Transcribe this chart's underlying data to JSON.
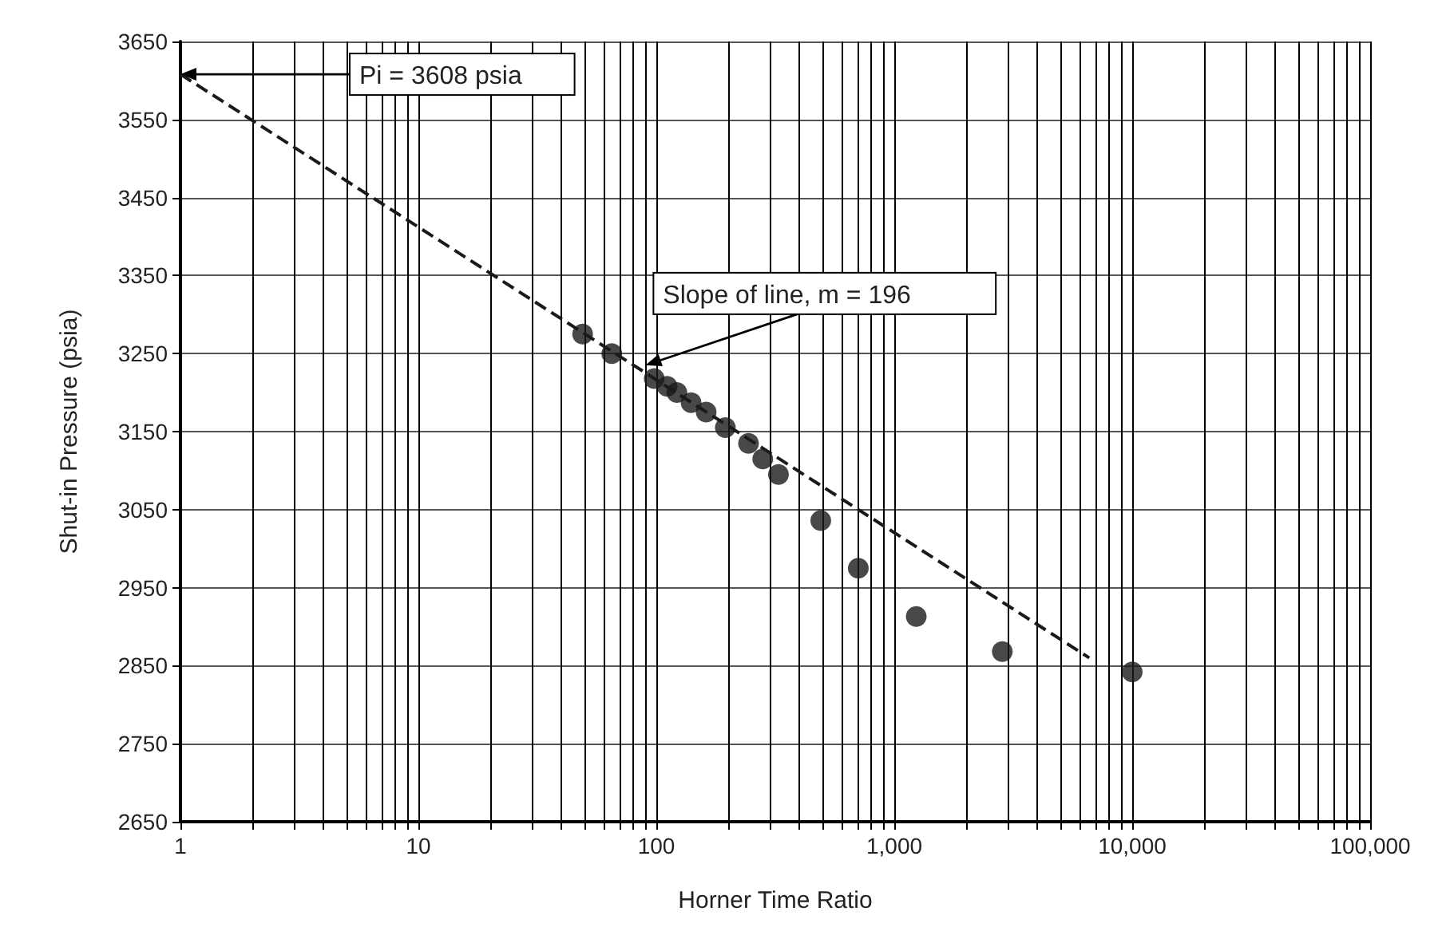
{
  "chart_data": {
    "type": "scatter",
    "xlabel": "Horner Time Ratio",
    "ylabel": "Shut-in Pressure (psia)",
    "log": "x",
    "grid": true,
    "xlim": [
      1,
      100000
    ],
    "ylim": [
      2650,
      3650
    ],
    "xticks": [
      {
        "value": 1,
        "label": "1"
      },
      {
        "value": 2,
        "label": null
      },
      {
        "value": 3,
        "label": null
      },
      {
        "value": 4,
        "label": null
      },
      {
        "value": 5,
        "label": null
      },
      {
        "value": 6,
        "label": null
      },
      {
        "value": 7,
        "label": null
      },
      {
        "value": 8,
        "label": null
      },
      {
        "value": 9,
        "label": null
      },
      {
        "value": 10,
        "label": "10"
      },
      {
        "value": 20,
        "label": null
      },
      {
        "value": 30,
        "label": null
      },
      {
        "value": 40,
        "label": null
      },
      {
        "value": 50,
        "label": null
      },
      {
        "value": 60,
        "label": null
      },
      {
        "value": 70,
        "label": null
      },
      {
        "value": 80,
        "label": null
      },
      {
        "value": 90,
        "label": null
      },
      {
        "value": 100,
        "label": "100"
      },
      {
        "value": 200,
        "label": null
      },
      {
        "value": 300,
        "label": null
      },
      {
        "value": 400,
        "label": null
      },
      {
        "value": 500,
        "label": null
      },
      {
        "value": 600,
        "label": null
      },
      {
        "value": 700,
        "label": null
      },
      {
        "value": 800,
        "label": null
      },
      {
        "value": 900,
        "label": null
      },
      {
        "value": 1000,
        "label": "1,000"
      },
      {
        "value": 2000,
        "label": null
      },
      {
        "value": 3000,
        "label": null
      },
      {
        "value": 4000,
        "label": null
      },
      {
        "value": 5000,
        "label": null
      },
      {
        "value": 6000,
        "label": null
      },
      {
        "value": 7000,
        "label": null
      },
      {
        "value": 8000,
        "label": null
      },
      {
        "value": 9000,
        "label": null
      },
      {
        "value": 10000,
        "label": "10,000"
      },
      {
        "value": 20000,
        "label": null
      },
      {
        "value": 30000,
        "label": null
      },
      {
        "value": 40000,
        "label": null
      },
      {
        "value": 50000,
        "label": null
      },
      {
        "value": 60000,
        "label": null
      },
      {
        "value": 70000,
        "label": null
      },
      {
        "value": 80000,
        "label": null
      },
      {
        "value": 90000,
        "label": null
      },
      {
        "value": 100000,
        "label": "100,000"
      }
    ],
    "yticks": [
      2650,
      2750,
      2850,
      2950,
      3050,
      3150,
      3250,
      3350,
      3450,
      3550,
      3650
    ],
    "series": [
      {
        "type": "line",
        "line_style": "dashed",
        "marker": "none",
        "color": "#1a1a1a",
        "x": [
          1,
          6600
        ],
        "values": [
          3608,
          2860
        ]
      },
      {
        "marker": "circle",
        "color": "#1a1a1a",
        "x": [
          49,
          65,
          98,
          111,
          122,
          140,
          162,
          195,
          244,
          280,
          326,
          491,
          706,
          1237,
          2845,
          10000
        ],
        "values": [
          3275,
          3250,
          3218,
          3208,
          3200,
          3187,
          3175,
          3155,
          3135,
          3115,
          3095,
          3036,
          2975,
          2913,
          2868,
          2842
        ]
      }
    ],
    "annotations": [
      "Pi = 3608 psia",
      {
        "text": "Slope of line, m = 196",
        "x": 90,
        "y": 3235
      }
    ]
  }
}
